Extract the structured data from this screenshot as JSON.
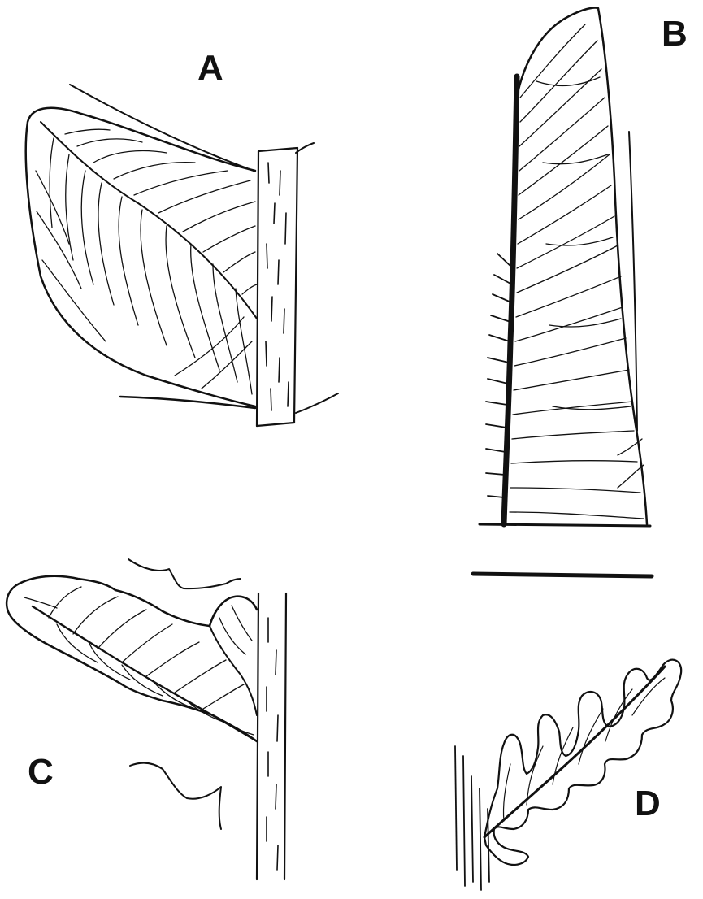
{
  "panels": [
    {
      "label": "A"
    },
    {
      "label": "B"
    },
    {
      "label": "C"
    },
    {
      "label": "D"
    }
  ],
  "colors": {
    "ink": "#111111",
    "paper": "#ffffff"
  }
}
